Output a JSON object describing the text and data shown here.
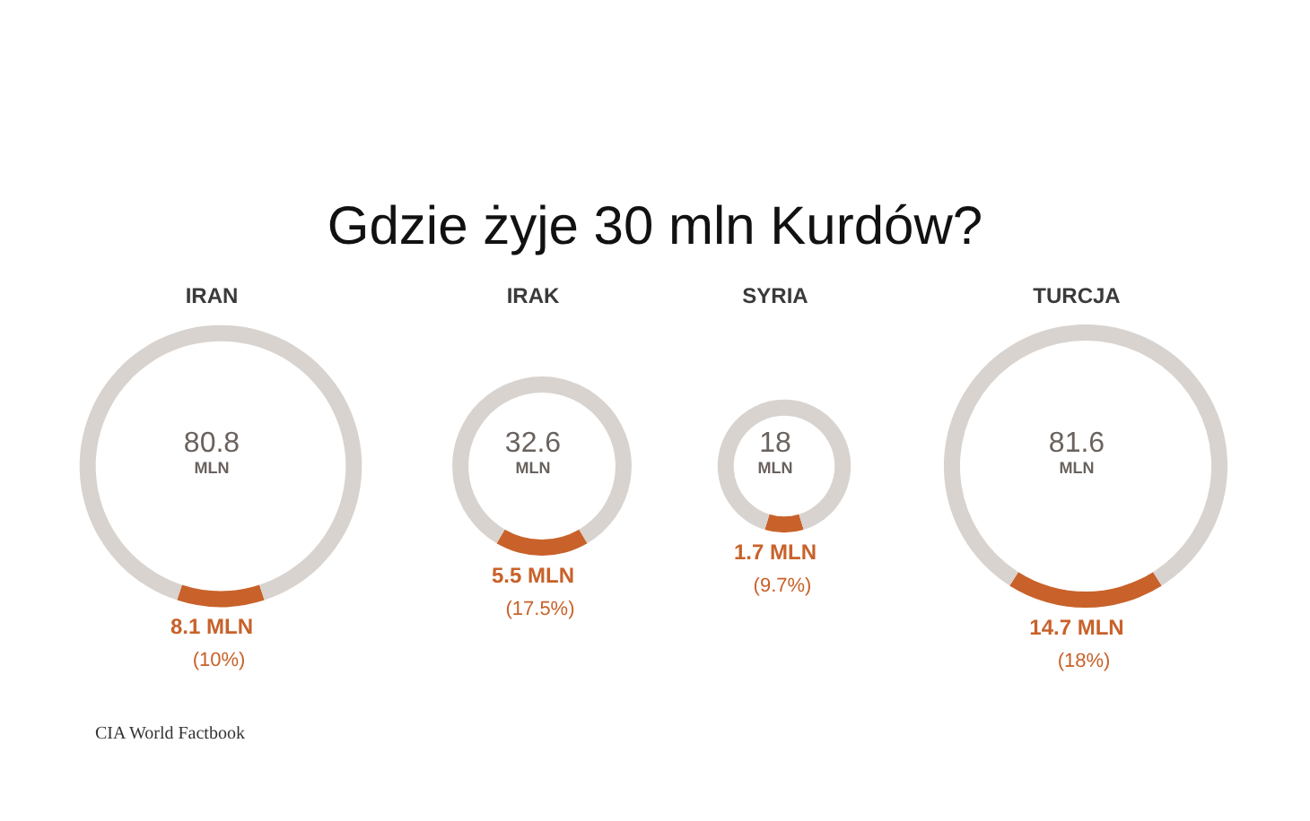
{
  "chart_data": [
    {
      "type": "donut",
      "title": "Gdzie żyje 30 mln Kurdów?",
      "subtitle": "IRAN",
      "categories": [
        null,
        null
      ],
      "values": [
        8.1,
        72.7
      ],
      "colors": [
        "#c8622a",
        "#d8d3cf"
      ],
      "value_labels": [
        "8.1 MLN (10%)",
        null
      ],
      "annotations": [
        "80.8 MLN",
        "CIA World Factbook"
      ]
    },
    {
      "type": "donut",
      "subtitle": "IRAK",
      "categories": [
        null,
        null
      ],
      "values": [
        5.5,
        27.1
      ],
      "colors": [
        "#c8622a",
        "#d8d3cf"
      ],
      "value_labels": [
        "5.5 MLN (17.5%)",
        null
      ],
      "annotations": [
        "32.6 MLN"
      ]
    },
    {
      "type": "donut",
      "subtitle": "SYRIA",
      "categories": [
        null,
        null
      ],
      "values": [
        1.7,
        16.3
      ],
      "colors": [
        "#c8622a",
        "#d8d3cf"
      ],
      "value_labels": [
        "1.7 MLN (9.7%)",
        null
      ],
      "annotations": [
        "18 MLN"
      ]
    },
    {
      "type": "donut",
      "subtitle": "TURCJA",
      "categories": [
        null,
        null
      ],
      "values": [
        14.7,
        66.9
      ],
      "colors": [
        "#c8622a",
        "#d8d3cf"
      ],
      "value_labels": [
        "14.7 MLN (18%)",
        null
      ],
      "annotations": [
        "81.6 MLN"
      ]
    }
  ]
}
